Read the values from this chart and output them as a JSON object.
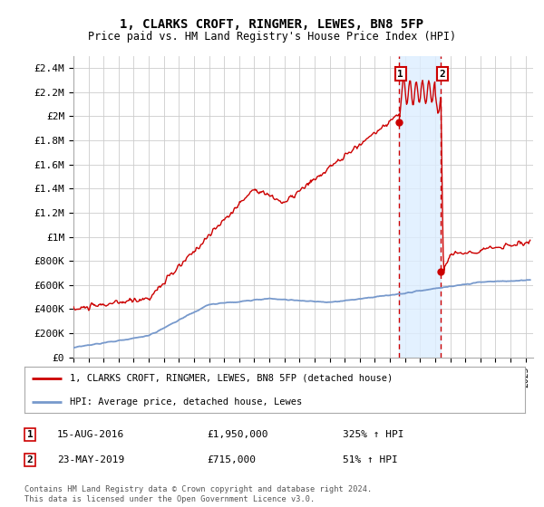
{
  "title": "1, CLARKS CROFT, RINGMER, LEWES, BN8 5FP",
  "subtitle": "Price paid vs. HM Land Registry's House Price Index (HPI)",
  "ylabel_ticks": [
    "£0",
    "£200K",
    "£400K",
    "£600K",
    "£800K",
    "£1M",
    "£1.2M",
    "£1.4M",
    "£1.6M",
    "£1.8M",
    "£2M",
    "£2.2M",
    "£2.4M"
  ],
  "ytick_values": [
    0,
    200000,
    400000,
    600000,
    800000,
    1000000,
    1200000,
    1400000,
    1600000,
    1800000,
    2000000,
    2200000,
    2400000
  ],
  "ylim": [
    0,
    2500000
  ],
  "xlim_start": 1995.0,
  "xlim_end": 2025.5,
  "sale1_year": 2016.623,
  "sale1_price": 1950000,
  "sale2_year": 2019.388,
  "sale2_price": 715000,
  "legend_line1": "1, CLARKS CROFT, RINGMER, LEWES, BN8 5FP (detached house)",
  "legend_line2": "HPI: Average price, detached house, Lewes",
  "footnote": "Contains HM Land Registry data © Crown copyright and database right 2024.\nThis data is licensed under the Open Government Licence v3.0.",
  "red_color": "#cc0000",
  "blue_color": "#7799cc",
  "shade_color": "#ddeeff",
  "grid_color": "#cccccc",
  "background_color": "#ffffff"
}
